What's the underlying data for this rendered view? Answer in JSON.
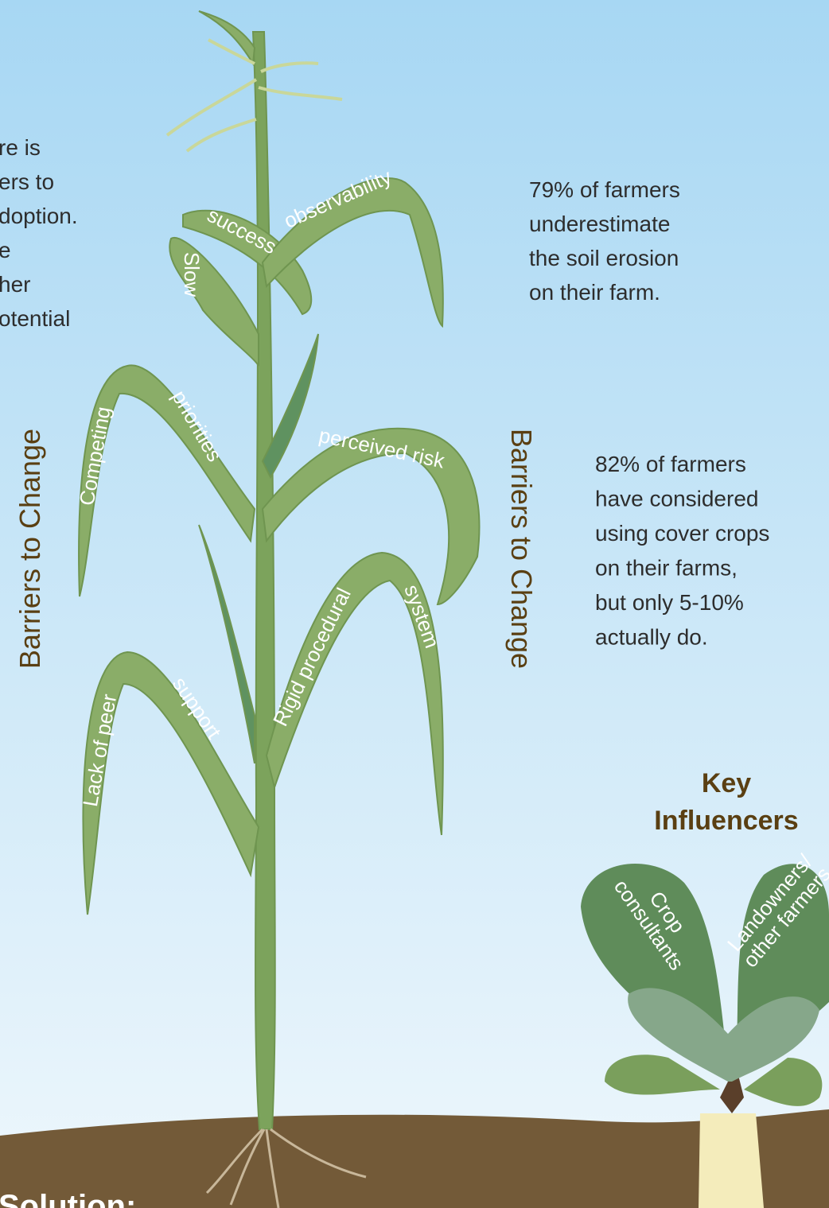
{
  "intro_lines": [
    "re is",
    "ers to",
    "doption.",
    "e",
    "her",
    "otential"
  ],
  "barriers_left": "Barriers to Change",
  "barriers_right": "Barriers to Change",
  "leaf_labels": [
    "Slow",
    "success",
    "observability",
    "Competing",
    "priorities",
    "perceived risk",
    "Lack of peer",
    "support",
    "Rigid procedural",
    "system"
  ],
  "stat_1": [
    "79% of farmers",
    "underestimate",
    "the soil erosion",
    "on their farm."
  ],
  "stat_2": [
    "82% of farmers",
    "have considered",
    "using cover crops",
    "on their farms,",
    "but only 5-10%",
    "actually do."
  ],
  "key_influencers": [
    "Key",
    "Influencers"
  ],
  "influencers": [
    [
      "Crop",
      "consultants"
    ],
    [
      "Landowners/",
      "other farmers"
    ]
  ],
  "solution": "Solution:"
}
